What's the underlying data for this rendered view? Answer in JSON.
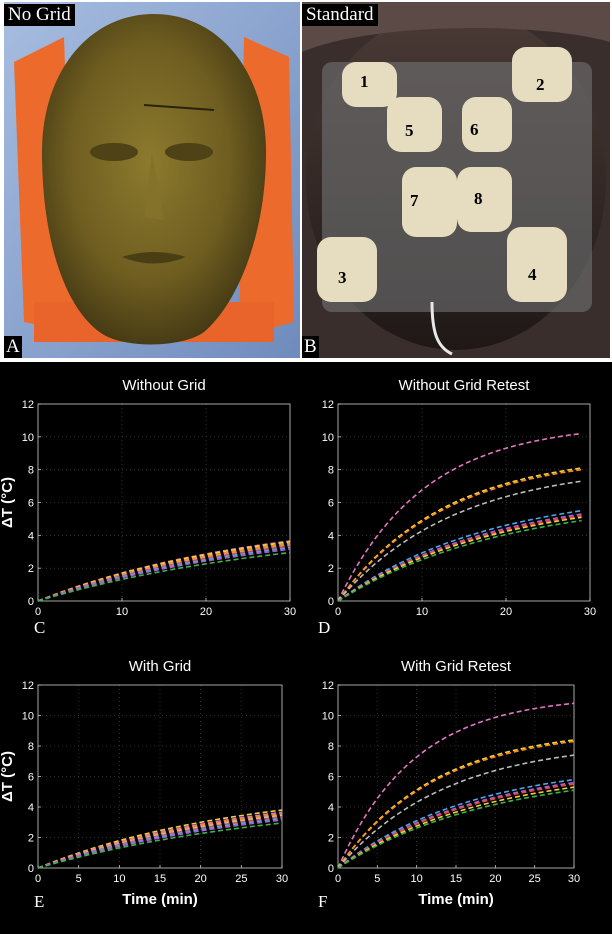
{
  "photos": [
    {
      "label": "No Grid",
      "letter": "A"
    },
    {
      "label": "Standard",
      "letter": "B"
    }
  ],
  "grid_numbers": [
    "1",
    "2",
    "3",
    "4",
    "5",
    "6",
    "7",
    "8"
  ],
  "chart_data": [
    {
      "type": "line",
      "letter": "C",
      "title": "Without Grid",
      "xlabel": "",
      "ylabel": "ΔT (°C)",
      "xlim": [
        0,
        30
      ],
      "ylim": [
        0,
        12
      ],
      "xticks": [
        0,
        10,
        20,
        30
      ],
      "yticks": [
        0,
        2,
        4,
        6,
        8,
        10,
        12
      ],
      "grid": true,
      "x": [
        0,
        30
      ],
      "series": [
        {
          "color": "#e377c2",
          "values": [
            0,
            3.65
          ]
        },
        {
          "color": "#f2d13c",
          "values": [
            0,
            3.6
          ]
        },
        {
          "color": "#ff8c1a",
          "values": [
            0,
            3.5
          ]
        },
        {
          "color": "#bbbbbb",
          "values": [
            0,
            3.4
          ]
        },
        {
          "color": "#e24a4a",
          "values": [
            0,
            3.35
          ]
        },
        {
          "color": "#4aa8e8",
          "values": [
            0,
            3.25
          ]
        },
        {
          "color": "#b05cd6",
          "values": [
            0,
            3.15
          ]
        },
        {
          "color": "#3cb44b",
          "values": [
            0,
            2.95
          ]
        }
      ]
    },
    {
      "type": "line",
      "letter": "D",
      "title": "Without Grid Retest",
      "xlabel": "",
      "ylabel": "",
      "xlim": [
        0,
        30
      ],
      "ylim": [
        0,
        12
      ],
      "xticks": [
        0,
        10,
        20,
        30
      ],
      "yticks": [
        0,
        2,
        4,
        6,
        8,
        10,
        12
      ],
      "grid": true,
      "x": [
        0,
        29
      ],
      "series": [
        {
          "color": "#e377c2",
          "values": [
            0,
            10.2
          ]
        },
        {
          "color": "#f2d13c",
          "values": [
            0,
            8.1
          ]
        },
        {
          "color": "#ff8c1a",
          "values": [
            0,
            8.0
          ]
        },
        {
          "color": "#bbbbbb",
          "values": [
            0,
            7.3
          ]
        },
        {
          "color": "#4aa8e8",
          "values": [
            0,
            5.5
          ]
        },
        {
          "color": "#b05cd6",
          "values": [
            0,
            5.3
          ]
        },
        {
          "color": "#e24a4a",
          "values": [
            0,
            5.2
          ]
        },
        {
          "color": "#f2d13c",
          "values": [
            0,
            5.1
          ]
        },
        {
          "color": "#3cb44b",
          "values": [
            0,
            4.9
          ]
        }
      ]
    },
    {
      "type": "line",
      "letter": "E",
      "title": "With Grid",
      "xlabel": "Time (min)",
      "ylabel": "ΔT (°C)",
      "xlim": [
        0,
        30
      ],
      "ylim": [
        0,
        12
      ],
      "xticks": [
        0,
        5,
        10,
        15,
        20,
        25,
        30
      ],
      "yticks": [
        0,
        2,
        4,
        6,
        8,
        10,
        12
      ],
      "grid": true,
      "x": [
        0,
        30
      ],
      "series": [
        {
          "color": "#f2d13c",
          "values": [
            0,
            3.8
          ]
        },
        {
          "color": "#e377c2",
          "values": [
            0,
            3.65
          ]
        },
        {
          "color": "#ff8c1a",
          "values": [
            0,
            3.55
          ]
        },
        {
          "color": "#bbbbbb",
          "values": [
            0,
            3.45
          ]
        },
        {
          "color": "#e24a4a",
          "values": [
            0,
            3.35
          ]
        },
        {
          "color": "#4aa8e8",
          "values": [
            0,
            3.25
          ]
        },
        {
          "color": "#b05cd6",
          "values": [
            0,
            3.15
          ]
        },
        {
          "color": "#3cb44b",
          "values": [
            0,
            2.95
          ]
        }
      ]
    },
    {
      "type": "line",
      "letter": "F",
      "title": "With Grid Retest",
      "xlabel": "Time (min)",
      "ylabel": "",
      "xlim": [
        0,
        30
      ],
      "ylim": [
        0,
        12
      ],
      "xticks": [
        0,
        5,
        10,
        15,
        20,
        25,
        30
      ],
      "yticks": [
        0,
        2,
        4,
        6,
        8,
        10,
        12
      ],
      "grid": true,
      "x": [
        0,
        30
      ],
      "series": [
        {
          "color": "#e377c2",
          "values": [
            0,
            10.8
          ]
        },
        {
          "color": "#f2d13c",
          "values": [
            0,
            8.4
          ]
        },
        {
          "color": "#ff8c1a",
          "values": [
            0,
            8.3
          ]
        },
        {
          "color": "#bbbbbb",
          "values": [
            0,
            7.4
          ]
        },
        {
          "color": "#4aa8e8",
          "values": [
            0,
            5.8
          ]
        },
        {
          "color": "#b05cd6",
          "values": [
            0,
            5.6
          ]
        },
        {
          "color": "#e24a4a",
          "values": [
            0,
            5.5
          ]
        },
        {
          "color": "#f2d13c",
          "values": [
            0,
            5.3
          ]
        },
        {
          "color": "#3cb44b",
          "values": [
            0,
            5.1
          ]
        }
      ]
    }
  ]
}
